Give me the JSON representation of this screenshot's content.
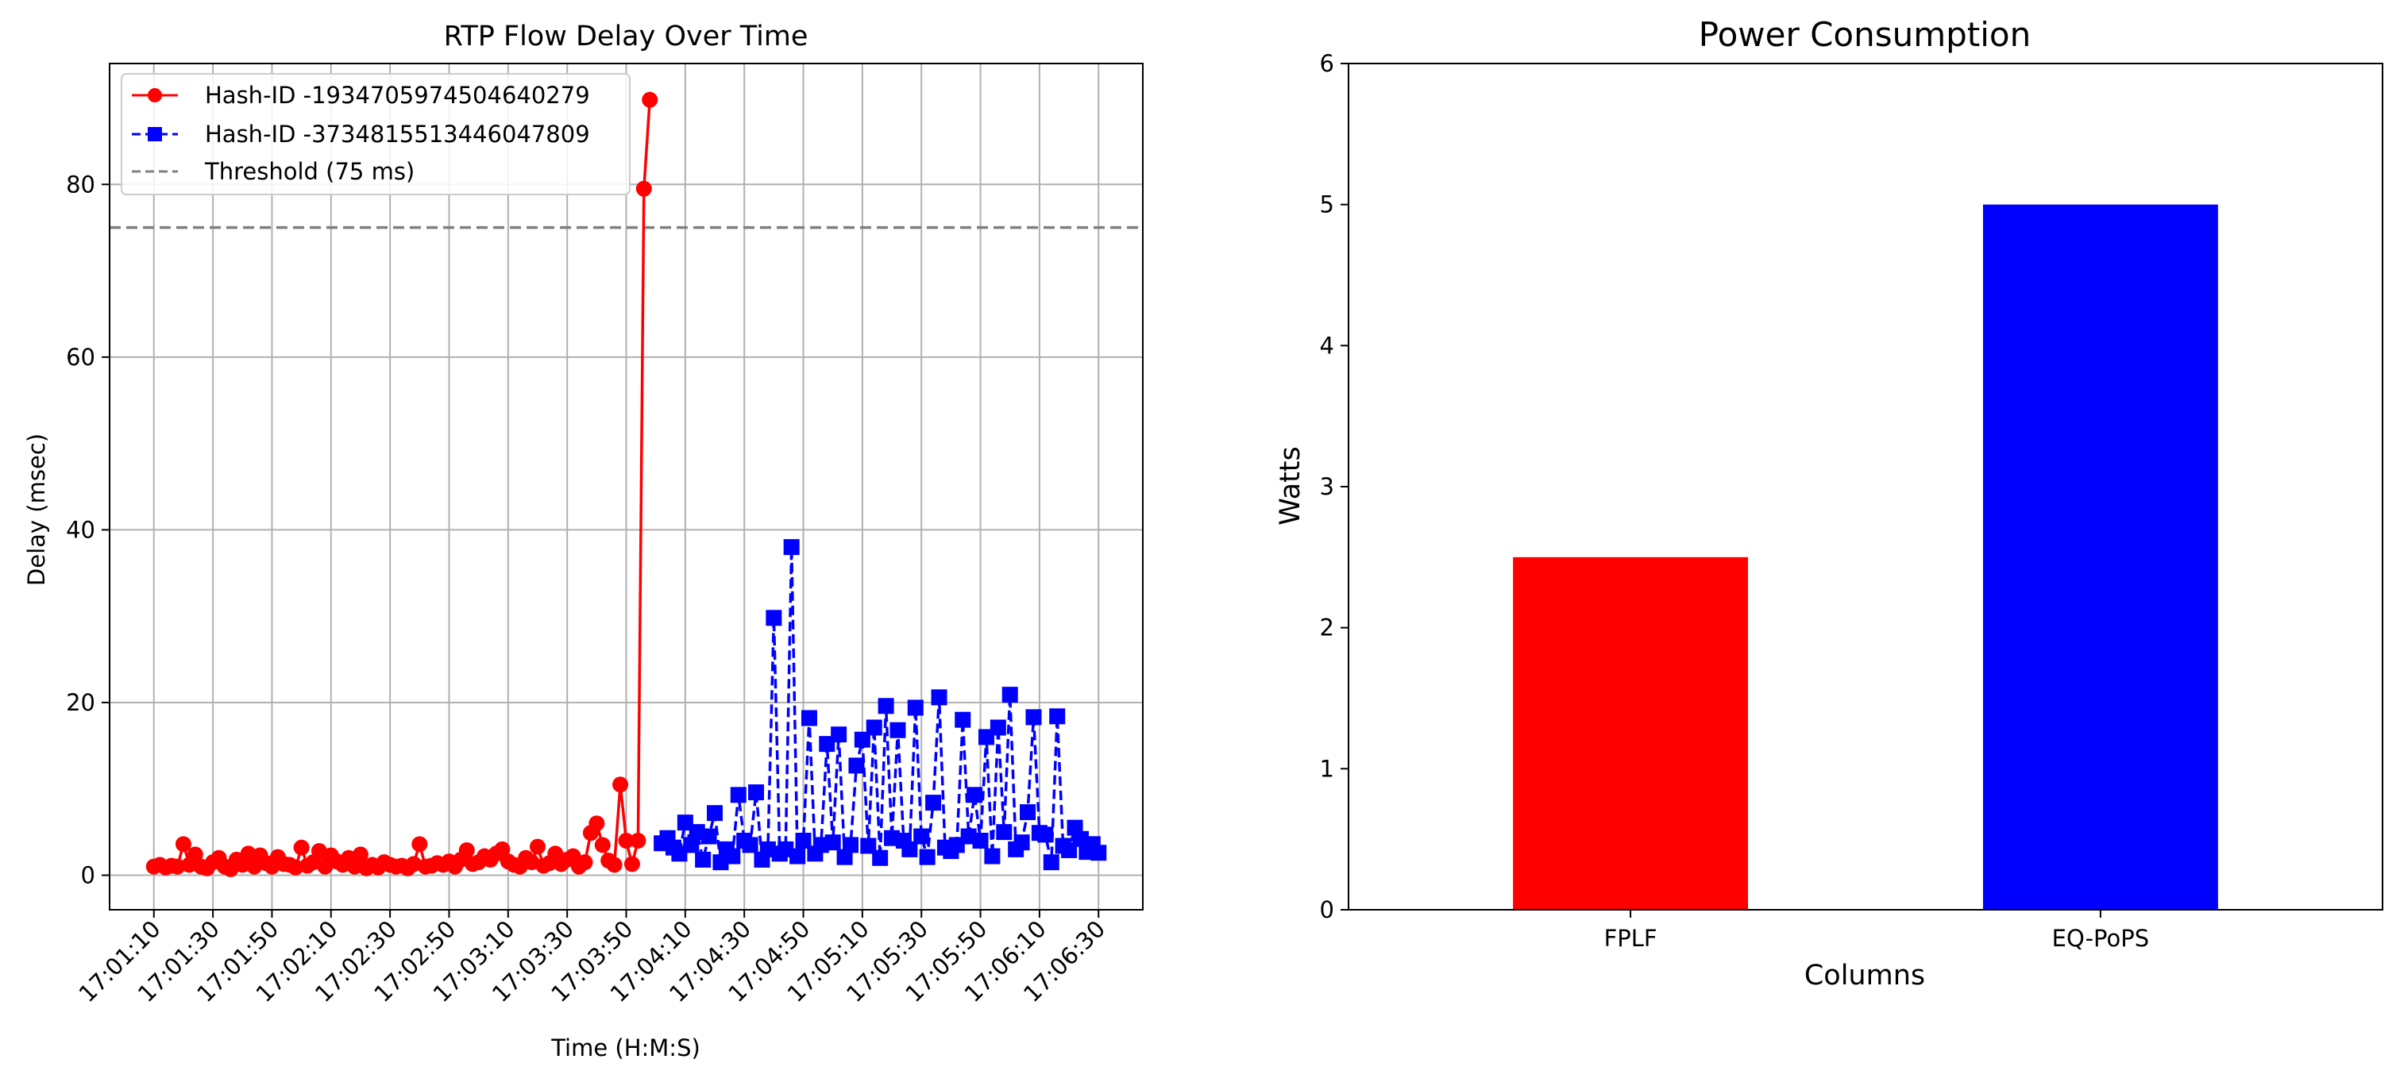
{
  "chart_data": [
    {
      "type": "line",
      "title": "RTP Flow Delay Over Time",
      "xlabel": "Time (H:M:S)",
      "ylabel": "Delay (msec)",
      "grid": true,
      "legend_position": "top-left",
      "x_tick_labels": [
        "17:01:10",
        "17:01:30",
        "17:01:50",
        "17:02:10",
        "17:02:30",
        "17:02:50",
        "17:03:10",
        "17:03:30",
        "17:03:50",
        "17:04:10",
        "17:04:30",
        "17:04:50",
        "17:05:10",
        "17:05:30",
        "17:05:50",
        "17:06:10",
        "17:06:30"
      ],
      "y_ticks": [
        0,
        20,
        40,
        60,
        80
      ],
      "ylim": [
        -4,
        94
      ],
      "xlim": [
        "17:00:55",
        "17:06:45"
      ],
      "threshold": {
        "name": "Threshold (75 ms)",
        "value": 75,
        "color": "#808080"
      },
      "series": [
        {
          "name": "Hash-ID -1934705974504640279",
          "color": "#ff0000",
          "marker": "circle",
          "line": "solid",
          "x": [
            "17:01:10",
            "17:01:12",
            "17:01:14",
            "17:01:16",
            "17:01:18",
            "17:01:20",
            "17:01:22",
            "17:01:24",
            "17:01:26",
            "17:01:28",
            "17:01:30",
            "17:01:32",
            "17:01:34",
            "17:01:36",
            "17:01:38",
            "17:01:40",
            "17:01:42",
            "17:01:44",
            "17:01:46",
            "17:01:48",
            "17:01:50",
            "17:01:52",
            "17:01:54",
            "17:01:56",
            "17:01:58",
            "17:02:00",
            "17:02:02",
            "17:02:04",
            "17:02:06",
            "17:02:08",
            "17:02:10",
            "17:02:12",
            "17:02:14",
            "17:02:16",
            "17:02:18",
            "17:02:20",
            "17:02:22",
            "17:02:24",
            "17:02:26",
            "17:02:28",
            "17:02:30",
            "17:02:32",
            "17:02:34",
            "17:02:36",
            "17:02:38",
            "17:02:40",
            "17:02:42",
            "17:02:44",
            "17:02:46",
            "17:02:48",
            "17:02:50",
            "17:02:52",
            "17:02:54",
            "17:02:56",
            "17:02:58",
            "17:03:00",
            "17:03:02",
            "17:03:04",
            "17:03:06",
            "17:03:08",
            "17:03:10",
            "17:03:12",
            "17:03:14",
            "17:03:16",
            "17:03:18",
            "17:03:20",
            "17:03:22",
            "17:03:24",
            "17:03:26",
            "17:03:28",
            "17:03:30",
            "17:03:32",
            "17:03:34",
            "17:03:36",
            "17:03:38",
            "17:03:40",
            "17:03:42",
            "17:03:44",
            "17:03:46",
            "17:03:48",
            "17:03:50",
            "17:03:52",
            "17:03:54",
            "17:03:56",
            "17:03:58"
          ],
          "y": [
            1.0,
            1.2,
            0.9,
            1.1,
            1.0,
            3.6,
            1.2,
            2.4,
            1.0,
            0.8,
            1.5,
            2.0,
            1.0,
            0.7,
            1.8,
            1.2,
            2.5,
            1.0,
            2.3,
            1.4,
            1.0,
            2.1,
            1.3,
            1.2,
            0.9,
            3.2,
            1.1,
            1.5,
            2.8,
            1.0,
            2.3,
            1.6,
            1.2,
            2.0,
            1.0,
            2.4,
            0.8,
            1.2,
            0.9,
            1.5,
            1.2,
            1.0,
            1.1,
            0.8,
            1.3,
            3.6,
            1.0,
            1.1,
            1.4,
            1.2,
            1.6,
            1.0,
            1.8,
            2.9,
            1.3,
            1.5,
            2.2,
            1.8,
            2.5,
            3.0,
            1.6,
            1.2,
            1.0,
            2.0,
            1.5,
            3.3,
            1.1,
            1.4,
            2.5,
            1.3,
            1.8,
            2.2,
            1.0,
            1.5,
            4.9,
            6.0,
            3.5,
            1.7,
            1.2,
            10.5,
            4.0,
            1.3,
            4.0,
            79.5,
            89.8
          ]
        },
        {
          "name": "Hash-ID -3734815513446047809",
          "color": "#0000ff",
          "marker": "square",
          "line": "dashed",
          "x": [
            "17:04:02",
            "17:04:04",
            "17:04:06",
            "17:04:08",
            "17:04:10",
            "17:04:12",
            "17:04:14",
            "17:04:16",
            "17:04:18",
            "17:04:20",
            "17:04:22",
            "17:04:24",
            "17:04:26",
            "17:04:28",
            "17:04:30",
            "17:04:32",
            "17:04:34",
            "17:04:36",
            "17:04:38",
            "17:04:40",
            "17:04:42",
            "17:04:44",
            "17:04:46",
            "17:04:48",
            "17:04:50",
            "17:04:52",
            "17:04:54",
            "17:04:56",
            "17:04:58",
            "17:05:00",
            "17:05:02",
            "17:05:04",
            "17:05:06",
            "17:05:08",
            "17:05:10",
            "17:05:12",
            "17:05:14",
            "17:05:16",
            "17:05:18",
            "17:05:20",
            "17:05:22",
            "17:05:24",
            "17:05:26",
            "17:05:28",
            "17:05:30",
            "17:05:32",
            "17:05:34",
            "17:05:36",
            "17:05:38",
            "17:05:40",
            "17:05:42",
            "17:05:44",
            "17:05:46",
            "17:05:48",
            "17:05:50",
            "17:05:52",
            "17:05:54",
            "17:05:56",
            "17:05:58",
            "17:06:00",
            "17:06:02",
            "17:06:04",
            "17:06:06",
            "17:06:08",
            "17:06:10",
            "17:06:12",
            "17:06:14",
            "17:06:16",
            "17:06:18",
            "17:06:20",
            "17:06:22",
            "17:06:24",
            "17:06:26",
            "17:06:28",
            "17:06:30"
          ],
          "y": [
            3.7,
            4.3,
            3.2,
            2.5,
            6.1,
            3.5,
            5.0,
            1.8,
            4.5,
            7.2,
            1.5,
            3.0,
            2.2,
            9.3,
            4.0,
            3.5,
            9.6,
            1.8,
            3.0,
            29.8,
            2.5,
            3.0,
            38.0,
            2.2,
            4.0,
            18.2,
            2.5,
            3.5,
            15.2,
            3.8,
            16.3,
            2.1,
            3.5,
            12.7,
            15.7,
            3.4,
            17.1,
            2.0,
            19.6,
            4.3,
            16.8,
            4.0,
            3.0,
            19.4,
            4.5,
            2.1,
            8.4,
            20.6,
            3.2,
            2.8,
            3.5,
            18.0,
            4.5,
            9.3,
            4.0,
            16.0,
            2.2,
            17.1,
            5.0,
            20.9,
            3.0,
            3.8,
            7.3,
            18.3,
            4.9,
            4.7,
            1.5,
            18.4,
            3.4,
            2.9,
            5.5,
            4.2,
            2.7,
            3.6,
            2.6
          ]
        }
      ]
    },
    {
      "type": "bar",
      "title": "Power Consumption",
      "xlabel": "Columns",
      "ylabel": "Watts",
      "categories": [
        "FPLF",
        "EQ-PoPS"
      ],
      "values": [
        2.5,
        5.0
      ],
      "colors": [
        "#ff0000",
        "#0000ff"
      ],
      "y_ticks": [
        0,
        1,
        2,
        3,
        4,
        5,
        6
      ],
      "ylim": [
        0,
        6
      ],
      "grid": false
    }
  ]
}
